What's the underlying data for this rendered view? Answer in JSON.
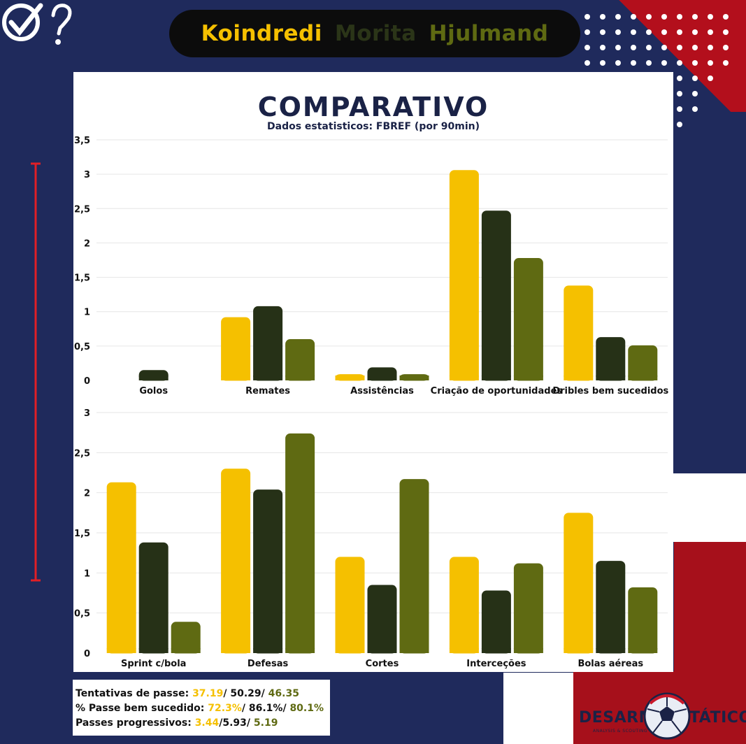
{
  "header": {
    "players": [
      {
        "name": "Koindredi",
        "color": "#f5c000"
      },
      {
        "name": "Morita",
        "color": "#2b3518"
      },
      {
        "name": "Hjulmand",
        "color": "#5f6a12"
      }
    ]
  },
  "panel": {
    "title": "COMPARATIVO",
    "subtitle": "Dados estatisticos:   FBREF (por 90min)"
  },
  "chart_data": [
    {
      "type": "bar",
      "ylim": [
        0,
        3.5
      ],
      "yticks": [
        "0",
        "0,5",
        "1",
        "1,5",
        "2",
        "2,5",
        "3",
        "3,5"
      ],
      "categories": [
        "Golos",
        "Remates",
        "Assistências",
        "Criação de oportunidades",
        "Dribles bem sucedidos"
      ],
      "series": [
        {
          "values": [
            0,
            0.92,
            0.09,
            3.06,
            1.38
          ],
          "color": "#f5c000"
        },
        {
          "values": [
            0.15,
            1.08,
            0.19,
            2.47,
            0.63
          ],
          "color": "#263117"
        },
        {
          "values": [
            0,
            0.6,
            0.09,
            1.78,
            0.51
          ],
          "color": "#5f6a12"
        }
      ],
      "grid": true
    },
    {
      "type": "bar",
      "ylim": [
        0,
        3
      ],
      "yticks": [
        "0",
        "0,5",
        "1",
        "1,5",
        "2",
        "2,5",
        "3"
      ],
      "categories": [
        "Sprint c/bola",
        "Defesas",
        "Cortes",
        "Interceções",
        "Bolas aéreas"
      ],
      "series": [
        {
          "values": [
            2.13,
            2.3,
            1.2,
            1.2,
            1.75
          ],
          "color": "#f5c000"
        },
        {
          "values": [
            1.38,
            2.04,
            0.85,
            0.78,
            1.15
          ],
          "color": "#263117"
        },
        {
          "values": [
            0.39,
            2.74,
            2.17,
            1.12,
            0.82
          ],
          "color": "#5f6a12"
        }
      ],
      "grid": true
    }
  ],
  "info": {
    "rows": [
      {
        "label": "Tentativas de passe: ",
        "v1": "37.19",
        "s1": "/ ",
        "v2": "50.29",
        "s2": "/ ",
        "v3": "46.35"
      },
      {
        "label": "% Passe bem sucedido: ",
        "v1": "72.3%",
        "s1": "/ ",
        "v2": "86.1%",
        "s2": "/ ",
        "v3": "80.1%"
      },
      {
        "label": "Passes progressivos: ",
        "v1": "3.44",
        "s1": "/",
        "v2": "5.93",
        "s2": "/ ",
        "v3": "5.19"
      }
    ]
  },
  "brand": {
    "left": "DESARME",
    "right": "TÁTICO",
    "sub": "ANALYSIS & SCOUTING"
  },
  "colors": {
    "background": "#1f2a5c",
    "accent_red": "#a6101b"
  }
}
